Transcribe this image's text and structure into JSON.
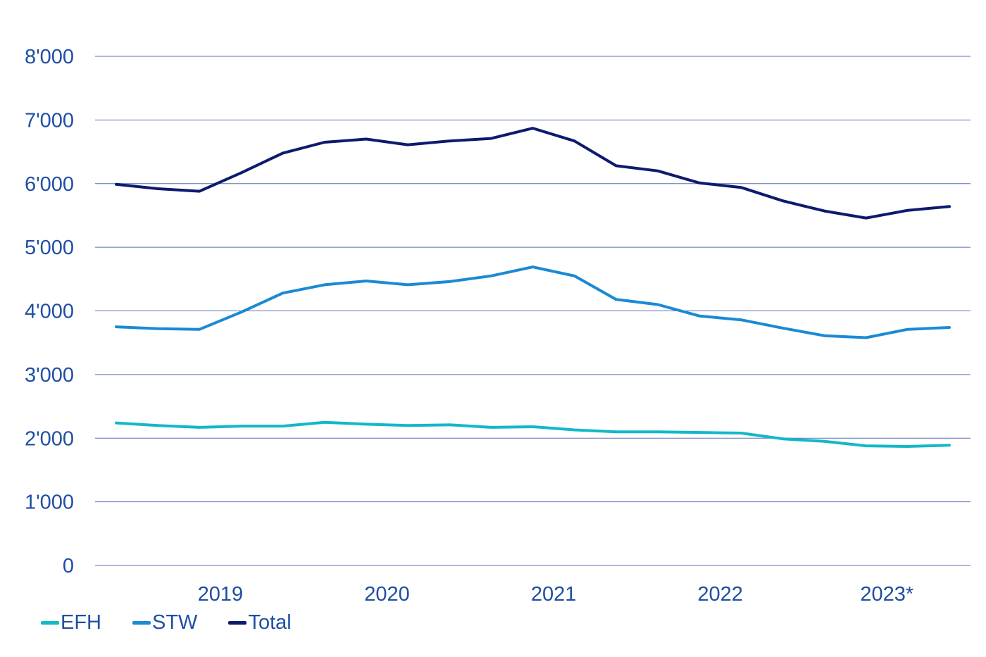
{
  "chart_data": {
    "type": "line",
    "title": "",
    "xlabel": "",
    "ylabel": "",
    "ylim": [
      0,
      8000
    ],
    "yticks": [
      0,
      1000,
      2000,
      3000,
      4000,
      5000,
      6000,
      7000,
      8000
    ],
    "ytick_labels": [
      "0",
      "1'000",
      "2'000",
      "3'000",
      "4'000",
      "5'000",
      "6'000",
      "7'000",
      "8'000"
    ],
    "year_labels": [
      "2019",
      "2020",
      "2021",
      "2022",
      "2023*"
    ],
    "x": [
      "2018 Q4",
      "2019 Q1",
      "2019 Q2",
      "2019 Q3",
      "2019 Q4",
      "2020 Q1",
      "2020 Q2",
      "2020 Q3",
      "2020 Q4",
      "2021 Q1",
      "2021 Q2",
      "2021 Q3",
      "2021 Q4",
      "2022 Q1",
      "2022 Q2",
      "2022 Q3",
      "2022 Q4",
      "2023 Q1",
      "2023 Q2",
      "2023 Q3",
      "2023 Q4"
    ],
    "grid": true,
    "legend_position": "bottom-left",
    "series": [
      {
        "name": "EFH",
        "color": "#12b8c8",
        "values": [
          2240,
          2200,
          2170,
          2190,
          2190,
          2250,
          2220,
          2200,
          2210,
          2170,
          2180,
          2130,
          2100,
          2100,
          2090,
          2080,
          1990,
          1950,
          1880,
          1870,
          1890
        ]
      },
      {
        "name": "STW",
        "color": "#1a8ad4",
        "values": [
          3750,
          3720,
          3710,
          3980,
          4280,
          4410,
          4470,
          4410,
          4460,
          4550,
          4690,
          4550,
          4180,
          4100,
          3920,
          3860,
          3730,
          3610,
          3580,
          3710,
          3740
        ]
      },
      {
        "name": "Total",
        "color": "#0e1a6e",
        "values": [
          5990,
          5920,
          5880,
          6170,
          6480,
          6650,
          6700,
          6610,
          6670,
          6710,
          6870,
          6670,
          6280,
          6200,
          6010,
          5940,
          5730,
          5570,
          5460,
          5580,
          5640
        ]
      }
    ]
  }
}
